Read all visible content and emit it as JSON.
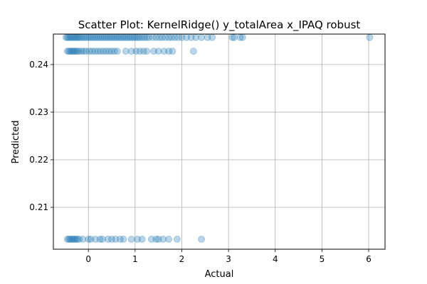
{
  "chart_data": {
    "type": "scatter",
    "title": "Scatter Plot: KernelRidge() y_totalArea x_IPAQ robust",
    "xlabel": "Actual",
    "ylabel": "Predicted",
    "xlim": [
      -0.75,
      6.35
    ],
    "ylim": [
      0.2012,
      0.2464
    ],
    "xticks": [
      0,
      1,
      2,
      3,
      4,
      5,
      6
    ],
    "yticks": [
      0.21,
      0.22,
      0.23,
      0.24
    ],
    "xtick_labels": [
      "0",
      "1",
      "2",
      "3",
      "4",
      "5",
      "6"
    ],
    "ytick_labels": [
      "0.21",
      "0.22",
      "0.23",
      "0.24"
    ],
    "grid": true,
    "marker_color": "#1f77b4",
    "marker_alpha": 0.3,
    "series": [
      {
        "values": [
          {
            "x": -0.48,
            "y": 0.2457
          },
          {
            "x": -0.45,
            "y": 0.2457
          },
          {
            "x": -0.42,
            "y": 0.2457
          },
          {
            "x": -0.39,
            "y": 0.2457
          },
          {
            "x": -0.36,
            "y": 0.2457
          },
          {
            "x": -0.33,
            "y": 0.2457
          },
          {
            "x": -0.3,
            "y": 0.2457
          },
          {
            "x": -0.27,
            "y": 0.2457
          },
          {
            "x": -0.24,
            "y": 0.2457
          },
          {
            "x": -0.21,
            "y": 0.2457
          },
          {
            "x": -0.18,
            "y": 0.2457
          },
          {
            "x": -0.14,
            "y": 0.2457
          },
          {
            "x": -0.1,
            "y": 0.2457
          },
          {
            "x": -0.06,
            "y": 0.2457
          },
          {
            "x": -0.02,
            "y": 0.2457
          },
          {
            "x": 0.02,
            "y": 0.2457
          },
          {
            "x": 0.06,
            "y": 0.2457
          },
          {
            "x": 0.1,
            "y": 0.2457
          },
          {
            "x": 0.14,
            "y": 0.2457
          },
          {
            "x": 0.18,
            "y": 0.2457
          },
          {
            "x": 0.22,
            "y": 0.2457
          },
          {
            "x": 0.26,
            "y": 0.2457
          },
          {
            "x": 0.3,
            "y": 0.2457
          },
          {
            "x": 0.34,
            "y": 0.2457
          },
          {
            "x": 0.38,
            "y": 0.2457
          },
          {
            "x": 0.42,
            "y": 0.2457
          },
          {
            "x": 0.46,
            "y": 0.2457
          },
          {
            "x": 0.5,
            "y": 0.2457
          },
          {
            "x": 0.54,
            "y": 0.2457
          },
          {
            "x": 0.58,
            "y": 0.2457
          },
          {
            "x": 0.62,
            "y": 0.2457
          },
          {
            "x": 0.66,
            "y": 0.2457
          },
          {
            "x": 0.7,
            "y": 0.2457
          },
          {
            "x": 0.74,
            "y": 0.2457
          },
          {
            "x": 0.78,
            "y": 0.2457
          },
          {
            "x": 0.82,
            "y": 0.2457
          },
          {
            "x": 0.86,
            "y": 0.2457
          },
          {
            "x": 0.9,
            "y": 0.2457
          },
          {
            "x": 0.94,
            "y": 0.2457
          },
          {
            "x": 0.98,
            "y": 0.2457
          },
          {
            "x": 1.02,
            "y": 0.2457
          },
          {
            "x": 1.06,
            "y": 0.2457
          },
          {
            "x": 1.1,
            "y": 0.2457
          },
          {
            "x": 1.15,
            "y": 0.2457
          },
          {
            "x": 1.2,
            "y": 0.2457
          },
          {
            "x": 1.25,
            "y": 0.2457
          },
          {
            "x": 1.3,
            "y": 0.2457
          },
          {
            "x": 1.38,
            "y": 0.2457
          },
          {
            "x": 1.45,
            "y": 0.2457
          },
          {
            "x": 1.52,
            "y": 0.2457
          },
          {
            "x": 1.58,
            "y": 0.2457
          },
          {
            "x": 1.65,
            "y": 0.2457
          },
          {
            "x": 1.72,
            "y": 0.2457
          },
          {
            "x": 1.78,
            "y": 0.2457
          },
          {
            "x": 1.85,
            "y": 0.2457
          },
          {
            "x": 1.92,
            "y": 0.2457
          },
          {
            "x": 2.0,
            "y": 0.2457
          },
          {
            "x": 2.1,
            "y": 0.2457
          },
          {
            "x": 2.2,
            "y": 0.2457
          },
          {
            "x": 2.3,
            "y": 0.2457
          },
          {
            "x": 2.42,
            "y": 0.2457
          },
          {
            "x": 2.55,
            "y": 0.2457
          },
          {
            "x": 2.65,
            "y": 0.2457
          },
          {
            "x": 3.08,
            "y": 0.2457
          },
          {
            "x": 3.12,
            "y": 0.2457
          },
          {
            "x": 3.25,
            "y": 0.2457
          },
          {
            "x": 3.3,
            "y": 0.2457
          },
          {
            "x": 6.02,
            "y": 0.2457
          },
          {
            "x": -0.45,
            "y": 0.2428
          },
          {
            "x": -0.42,
            "y": 0.2428
          },
          {
            "x": -0.39,
            "y": 0.2428
          },
          {
            "x": -0.36,
            "y": 0.2428
          },
          {
            "x": -0.33,
            "y": 0.2428
          },
          {
            "x": -0.3,
            "y": 0.2428
          },
          {
            "x": -0.27,
            "y": 0.2428
          },
          {
            "x": -0.24,
            "y": 0.2428
          },
          {
            "x": -0.2,
            "y": 0.2428
          },
          {
            "x": -0.15,
            "y": 0.2428
          },
          {
            "x": -0.1,
            "y": 0.2428
          },
          {
            "x": -0.05,
            "y": 0.2428
          },
          {
            "x": 0.02,
            "y": 0.2428
          },
          {
            "x": 0.08,
            "y": 0.2428
          },
          {
            "x": 0.14,
            "y": 0.2428
          },
          {
            "x": 0.2,
            "y": 0.2428
          },
          {
            "x": 0.26,
            "y": 0.2428
          },
          {
            "x": 0.32,
            "y": 0.2428
          },
          {
            "x": 0.38,
            "y": 0.2428
          },
          {
            "x": 0.44,
            "y": 0.2428
          },
          {
            "x": 0.5,
            "y": 0.2428
          },
          {
            "x": 0.56,
            "y": 0.2428
          },
          {
            "x": 0.62,
            "y": 0.2428
          },
          {
            "x": 0.8,
            "y": 0.2428
          },
          {
            "x": 0.92,
            "y": 0.2428
          },
          {
            "x": 1.02,
            "y": 0.2428
          },
          {
            "x": 1.1,
            "y": 0.2428
          },
          {
            "x": 1.18,
            "y": 0.2428
          },
          {
            "x": 1.25,
            "y": 0.2428
          },
          {
            "x": 1.4,
            "y": 0.2428
          },
          {
            "x": 1.5,
            "y": 0.2428
          },
          {
            "x": 1.62,
            "y": 0.2428
          },
          {
            "x": 1.72,
            "y": 0.2428
          },
          {
            "x": 1.8,
            "y": 0.2428
          },
          {
            "x": 2.25,
            "y": 0.2428
          },
          {
            "x": -0.45,
            "y": 0.2033
          },
          {
            "x": -0.42,
            "y": 0.2033
          },
          {
            "x": -0.39,
            "y": 0.2033
          },
          {
            "x": -0.36,
            "y": 0.2033
          },
          {
            "x": -0.33,
            "y": 0.2033
          },
          {
            "x": -0.3,
            "y": 0.2033
          },
          {
            "x": -0.27,
            "y": 0.2033
          },
          {
            "x": -0.24,
            "y": 0.2033
          },
          {
            "x": -0.2,
            "y": 0.2033
          },
          {
            "x": -0.12,
            "y": 0.2033
          },
          {
            "x": 0.0,
            "y": 0.2033
          },
          {
            "x": 0.05,
            "y": 0.2033
          },
          {
            "x": 0.15,
            "y": 0.2033
          },
          {
            "x": 0.25,
            "y": 0.2033
          },
          {
            "x": 0.3,
            "y": 0.2033
          },
          {
            "x": 0.42,
            "y": 0.2033
          },
          {
            "x": 0.5,
            "y": 0.2033
          },
          {
            "x": 0.58,
            "y": 0.2033
          },
          {
            "x": 0.68,
            "y": 0.2033
          },
          {
            "x": 0.75,
            "y": 0.2033
          },
          {
            "x": 0.92,
            "y": 0.2033
          },
          {
            "x": 1.05,
            "y": 0.2033
          },
          {
            "x": 1.15,
            "y": 0.2033
          },
          {
            "x": 1.35,
            "y": 0.2033
          },
          {
            "x": 1.45,
            "y": 0.2033
          },
          {
            "x": 1.5,
            "y": 0.2033
          },
          {
            "x": 1.6,
            "y": 0.2033
          },
          {
            "x": 1.72,
            "y": 0.2033
          },
          {
            "x": 1.9,
            "y": 0.2033
          },
          {
            "x": 2.42,
            "y": 0.2033
          }
        ]
      }
    ]
  }
}
